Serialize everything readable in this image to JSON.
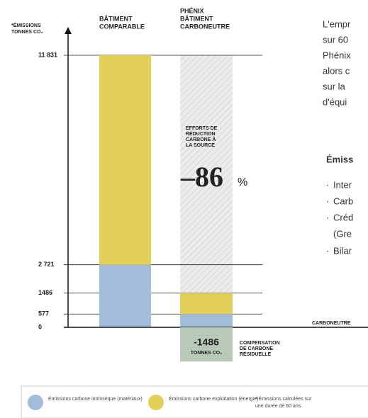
{
  "chart_data": {
    "type": "stacked_bar",
    "y_label": [
      "*ÉMISSIONS",
      "TONNES CO₂"
    ],
    "categories": [
      [
        "BÂTIMENT",
        "COMPARABLE"
      ],
      [
        "PHÉNIX",
        "BÂTIMENT",
        "CARBONEUTRE"
      ]
    ],
    "series": [
      {
        "name": "Émissions carbone intrinsèque (matériaux)",
        "color": "#a3bcd9",
        "values": [
          2721,
          577
        ]
      },
      {
        "name": "Émissions carbone exploitation (énergie)",
        "color": "#e3d05a",
        "values": [
          9110,
          909
        ]
      }
    ],
    "ylim": [
      -1486,
      11831
    ],
    "yticks": [
      {
        "value": 11831,
        "label": "11 831"
      },
      {
        "value": 2721,
        "label": "2 721"
      },
      1486,
      577,
      0
    ],
    "zero_label": "CARBONEUTRE",
    "reduction": {
      "label": [
        "EFFORTS DE",
        "RÉDUCTION",
        "CARBONE À",
        "LA SOURCE"
      ],
      "value": -86,
      "value_label": "–86",
      "unit": "%"
    },
    "compensation": {
      "label": [
        "COMPENSATION",
        "DE CARBONE",
        "RÉSIDUELLE"
      ],
      "value": -1486,
      "value_label": "-1486",
      "unit": "TONNES CO₂",
      "color": "#b9c9b9"
    },
    "note": [
      "* Émissions calculées sur",
      "une durée de 60 ans."
    ]
  },
  "side_text": {
    "paragraph": [
      "L'empr",
      "sur 60",
      "Phénix",
      "alors c",
      "sur la",
      "d'équi"
    ],
    "heading": "Émiss",
    "items": [
      "Inter",
      "Carb",
      "Créd",
      "(Gre",
      "Bilar"
    ]
  }
}
